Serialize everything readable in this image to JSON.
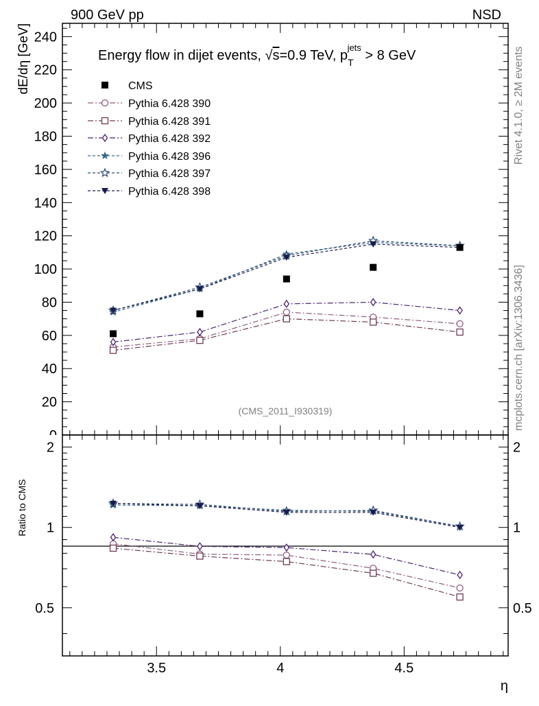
{
  "header": {
    "left_label": "900 GeV pp",
    "right_label": "NSD"
  },
  "side_labels": {
    "rivet": "Rivet 4.1.0, ≥ 2M events",
    "mcplots": "mcplots.cern.ch [arXiv:1306.3436]"
  },
  "chart_data": {
    "type": "line",
    "title_main": "Energy flow in dijet events, ",
    "title_sqrt": "√",
    "title_s": "s",
    "title_energy": "=0.9 TeV, p",
    "title_sub": "T",
    "title_sup": "jets",
    "title_cut": " > 8 GeV",
    "watermark": "(CMS_2011_I930319)",
    "xlabel": "η",
    "ylabel_main": "dE/dη [GeV]",
    "ylabel_ratio": "Ratio to CMS",
    "xlim": [
      3.12,
      4.92
    ],
    "ylim_main": [
      0,
      248
    ],
    "ylim_ratio": [
      0.33,
      2.22
    ],
    "x_ticks": [
      3.5,
      4,
      4.5
    ],
    "x_tick_labels": [
      "3.5",
      "4",
      "4.5"
    ],
    "y_ticks_main": [
      20,
      40,
      60,
      80,
      100,
      120,
      140,
      160,
      180,
      200,
      220,
      240
    ],
    "y_tick_labels_main": [
      "20",
      "40",
      "60",
      "80",
      "100",
      "120",
      "140",
      "160",
      "180",
      "200",
      "220",
      "240"
    ],
    "y_zero_label": "0",
    "y_ticks_ratio": [
      0.5,
      1,
      2
    ],
    "y_tick_labels_ratio": [
      "0.5",
      "1",
      "2"
    ],
    "x": [
      3.325,
      3.675,
      4.025,
      4.375,
      4.725
    ],
    "data": {
      "name": "CMS",
      "values": [
        61,
        73,
        94,
        101,
        113
      ],
      "color": "#000000"
    },
    "series": [
      {
        "name": "Pythia 6.428 390",
        "values": [
          53,
          58,
          74,
          71,
          67
        ],
        "color": "#8e5a7e",
        "marker": "circle",
        "dash": "8,3,2,3"
      },
      {
        "name": "Pythia 6.428 391",
        "values": [
          51,
          57,
          70,
          68,
          62
        ],
        "color": "#6e3a52",
        "marker": "square",
        "dash": "8,3,2,3"
      },
      {
        "name": "Pythia 6.428 392",
        "values": [
          56,
          62,
          79,
          80,
          75
        ],
        "color": "#4a2070",
        "marker": "diamond",
        "dash": "8,3,2,3"
      },
      {
        "name": "Pythia 6.428 396",
        "values": [
          74,
          88,
          109,
          116,
          114
        ],
        "color": "#3a6884",
        "marker": "star-filled",
        "dash": "4,3"
      },
      {
        "name": "Pythia 6.428 397",
        "values": [
          75,
          89,
          108,
          117,
          114
        ],
        "color": "#2c4a70",
        "marker": "star-open",
        "dash": "4,3"
      },
      {
        "name": "Pythia 6.428 398",
        "values": [
          75,
          88,
          107,
          115,
          113
        ],
        "color": "#1a1a4c",
        "marker": "triangle-down",
        "dash": "4,3"
      }
    ]
  }
}
